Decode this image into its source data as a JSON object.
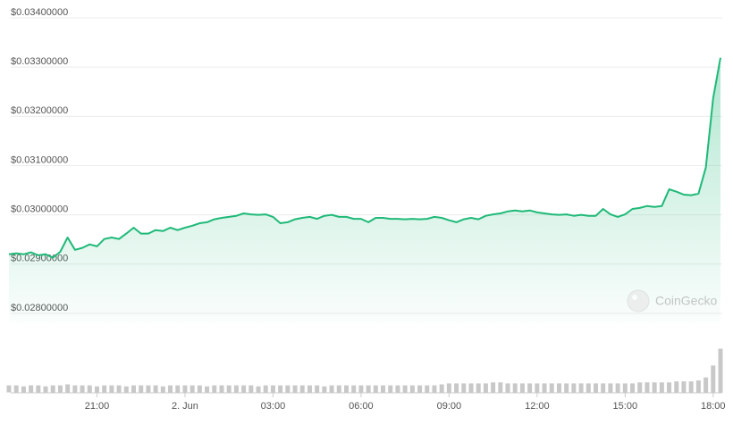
{
  "chart_data": {
    "type": "line",
    "categories": [
      null,
      null,
      null,
      null,
      null,
      null,
      null,
      null,
      null,
      null,
      null,
      null,
      "21:00",
      null,
      null,
      null,
      null,
      null,
      null,
      null,
      null,
      null,
      null,
      null,
      "2. Jun",
      null,
      null,
      null,
      null,
      null,
      null,
      null,
      null,
      null,
      null,
      null,
      "03:00",
      null,
      null,
      null,
      null,
      null,
      null,
      null,
      null,
      null,
      null,
      null,
      "06:00",
      null,
      null,
      null,
      null,
      null,
      null,
      null,
      null,
      null,
      null,
      null,
      "09:00",
      null,
      null,
      null,
      null,
      null,
      null,
      null,
      null,
      null,
      null,
      null,
      "12:00",
      null,
      null,
      null,
      null,
      null,
      null,
      null,
      null,
      null,
      null,
      null,
      "15:00",
      null,
      null,
      null,
      null,
      null,
      null,
      null,
      null,
      null,
      null,
      null,
      "18:00",
      null
    ],
    "values": [
      0.0292,
      0.02922,
      0.0292,
      0.02924,
      0.02918,
      0.0292,
      0.02913,
      0.02925,
      0.02954,
      0.02929,
      0.02933,
      0.0294,
      0.02936,
      0.02951,
      0.02954,
      0.02951,
      0.02962,
      0.02974,
      0.02962,
      0.02962,
      0.02969,
      0.02967,
      0.02974,
      0.02969,
      0.02974,
      0.02978,
      0.02983,
      0.02985,
      0.02991,
      0.02994,
      0.02996,
      0.02998,
      0.03003,
      0.03001,
      0.03,
      0.03001,
      0.02996,
      0.02983,
      0.02985,
      0.02991,
      0.02994,
      0.02996,
      0.02992,
      0.02998,
      0.03,
      0.02996,
      0.02996,
      0.02992,
      0.02992,
      0.02985,
      0.02994,
      0.02994,
      0.02992,
      0.02992,
      0.02991,
      0.02992,
      0.02991,
      0.02992,
      0.02996,
      0.02994,
      0.02989,
      0.02985,
      0.02991,
      0.02994,
      0.02991,
      0.02998,
      0.03001,
      0.03003,
      0.03007,
      0.03009,
      0.03007,
      0.03009,
      0.03005,
      0.03003,
      0.03001,
      0.03,
      0.03001,
      0.02998,
      0.03,
      0.02998,
      0.02998,
      0.03012,
      0.03001,
      0.02996,
      0.03001,
      0.03012,
      0.03014,
      0.03018,
      0.03016,
      0.03018,
      0.03052,
      0.03047,
      0.03041,
      0.0304,
      0.03043,
      0.03096,
      0.03237,
      0.03319
    ],
    "volumes": [
      8,
      8,
      7,
      8,
      8,
      7,
      8,
      8,
      9,
      8,
      8,
      8,
      7,
      8,
      8,
      8,
      7,
      8,
      8,
      8,
      8,
      7,
      8,
      8,
      8,
      8,
      8,
      7,
      8,
      8,
      8,
      8,
      8,
      8,
      7,
      8,
      8,
      8,
      8,
      8,
      8,
      8,
      8,
      7,
      8,
      8,
      8,
      8,
      8,
      8,
      8,
      8,
      8,
      8,
      8,
      8,
      8,
      8,
      8,
      9,
      10,
      10,
      10,
      10,
      10,
      10,
      11,
      11,
      10,
      10,
      10,
      10,
      10,
      10,
      10,
      10,
      10,
      10,
      10,
      10,
      10,
      10,
      10,
      10,
      10,
      10,
      11,
      11,
      11,
      11,
      11,
      12,
      12,
      12,
      13,
      16,
      28,
      45
    ],
    "color": "#1fb978",
    "volume_color": "#c8c8c8",
    "ylim": [
      0.0278,
      0.034
    ],
    "yticks": [
      {
        "value": 0.028,
        "label": "$0.02800000"
      },
      {
        "value": 0.029,
        "label": "$0.02900000"
      },
      {
        "value": 0.03,
        "label": "$0.03000000"
      },
      {
        "value": 0.031,
        "label": "$0.03100000"
      },
      {
        "value": 0.032,
        "label": "$0.03200000"
      },
      {
        "value": 0.033,
        "label": "$0.03300000"
      },
      {
        "value": 0.034,
        "label": "$0.03400000"
      }
    ],
    "grid": true,
    "watermark": "CoinGecko"
  }
}
